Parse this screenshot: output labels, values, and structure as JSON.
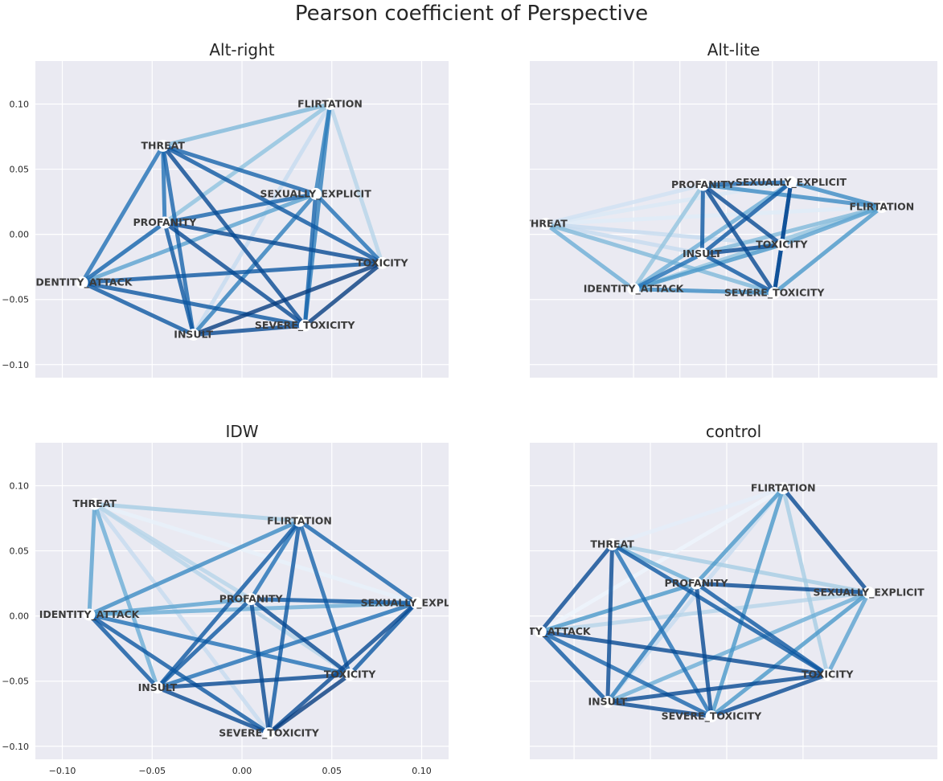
{
  "title": "Pearson coefficient of Perspective",
  "axes": {
    "x_ticks": [
      "−0.10",
      "−0.05",
      "0.00",
      "0.05",
      "0.10"
    ],
    "y_ticks": [
      "−0.10",
      "−0.05",
      "0.00",
      "0.05",
      "0.10"
    ]
  },
  "chart_data": [
    {
      "type": "network",
      "title": "Alt-right",
      "nodes": [
        {
          "id": "FLIRTATION",
          "x": 0.049,
          "y": 0.1
        },
        {
          "id": "THREAT",
          "x": -0.044,
          "y": 0.068
        },
        {
          "id": "SEXUALLY_EXPLICIT",
          "x": 0.041,
          "y": 0.031
        },
        {
          "id": "PROFANITY",
          "x": -0.043,
          "y": 0.009
        },
        {
          "id": "TOXICITY",
          "x": 0.078,
          "y": -0.022
        },
        {
          "id": "IDENTITY_ATTACK",
          "x": -0.089,
          "y": -0.037
        },
        {
          "id": "SEVERE_TOXICITY",
          "x": 0.035,
          "y": -0.07
        },
        {
          "id": "INSULT",
          "x": -0.027,
          "y": -0.077
        }
      ],
      "edges": [
        [
          "THREAT",
          "FLIRTATION",
          0.45
        ],
        [
          "PROFANITY",
          "FLIRTATION",
          0.4
        ],
        [
          "IDENTITY_ATTACK",
          "FLIRTATION",
          0.2
        ],
        [
          "SEXUALLY_EXPLICIT",
          "FLIRTATION",
          0.7
        ],
        [
          "TOXICITY",
          "FLIRTATION",
          0.3
        ],
        [
          "SEVERE_TOXICITY",
          "FLIRTATION",
          0.7
        ],
        [
          "INSULT",
          "FLIRTATION",
          0.25
        ],
        [
          "THREAT",
          "PROFANITY",
          0.75
        ],
        [
          "THREAT",
          "IDENTITY_ATTACK",
          0.75
        ],
        [
          "THREAT",
          "INSULT",
          0.8
        ],
        [
          "THREAT",
          "SEVERE_TOXICITY",
          0.9
        ],
        [
          "THREAT",
          "TOXICITY",
          0.85
        ],
        [
          "THREAT",
          "SEXUALLY_EXPLICIT",
          0.8
        ],
        [
          "PROFANITY",
          "SEXUALLY_EXPLICIT",
          0.8
        ],
        [
          "PROFANITY",
          "TOXICITY",
          0.9
        ],
        [
          "PROFANITY",
          "SEVERE_TOXICITY",
          0.9
        ],
        [
          "PROFANITY",
          "INSULT",
          0.85
        ],
        [
          "PROFANITY",
          "IDENTITY_ATTACK",
          0.8
        ],
        [
          "IDENTITY_ATTACK",
          "SEXUALLY_EXPLICIT",
          0.55
        ],
        [
          "IDENTITY_ATTACK",
          "TOXICITY",
          0.85
        ],
        [
          "IDENTITY_ATTACK",
          "SEVERE_TOXICITY",
          0.85
        ],
        [
          "IDENTITY_ATTACK",
          "INSULT",
          0.85
        ],
        [
          "INSULT",
          "SEXUALLY_EXPLICIT",
          0.7
        ],
        [
          "INSULT",
          "SEVERE_TOXICITY",
          0.9
        ],
        [
          "INSULT",
          "TOXICITY",
          0.95
        ],
        [
          "SEVERE_TOXICITY",
          "TOXICITY",
          0.95
        ],
        [
          "SEXUALLY_EXPLICIT",
          "TOXICITY",
          0.75
        ],
        [
          "SEXUALLY_EXPLICIT",
          "SEVERE_TOXICITY",
          0.8
        ]
      ]
    },
    {
      "type": "network",
      "title": "Alt-lite",
      "nodes": [
        {
          "id": "SEXUALLY_EXPLICIT",
          "x": 0.07,
          "y": 0.04
        },
        {
          "id": "PROFANITY",
          "x": -0.025,
          "y": 0.038
        },
        {
          "id": "FLIRTATION",
          "x": 0.168,
          "y": 0.021
        },
        {
          "id": "THREAT",
          "x": -0.195,
          "y": 0.008
        },
        {
          "id": "TOXICITY",
          "x": 0.06,
          "y": -0.008
        },
        {
          "id": "INSULT",
          "x": -0.026,
          "y": -0.015
        },
        {
          "id": "IDENTITY_ATTACK",
          "x": -0.1,
          "y": -0.042
        },
        {
          "id": "SEVERE_TOXICITY",
          "x": 0.052,
          "y": -0.045
        }
      ],
      "edges": [
        [
          "THREAT",
          "FLIRTATION",
          0.12
        ],
        [
          "THREAT",
          "PROFANITY",
          0.2
        ],
        [
          "THREAT",
          "INSULT",
          0.25
        ],
        [
          "THREAT",
          "TOXICITY",
          0.25
        ],
        [
          "THREAT",
          "SEVERE_TOXICITY",
          0.45
        ],
        [
          "THREAT",
          "IDENTITY_ATTACK",
          0.5
        ],
        [
          "THREAT",
          "SEXUALLY_EXPLICIT",
          0.15
        ],
        [
          "PROFANITY",
          "SEXUALLY_EXPLICIT",
          0.8
        ],
        [
          "PROFANITY",
          "FLIRTATION",
          0.65
        ],
        [
          "PROFANITY",
          "IDENTITY_ATTACK",
          0.4
        ],
        [
          "PROFANITY",
          "INSULT",
          0.85
        ],
        [
          "PROFANITY",
          "TOXICITY",
          0.9
        ],
        [
          "PROFANITY",
          "SEVERE_TOXICITY",
          0.9
        ],
        [
          "SEXUALLY_EXPLICIT",
          "FLIRTATION",
          0.65
        ],
        [
          "SEXUALLY_EXPLICIT",
          "INSULT",
          0.85
        ],
        [
          "SEXUALLY_EXPLICIT",
          "TOXICITY",
          0.9
        ],
        [
          "SEXUALLY_EXPLICIT",
          "SEVERE_TOXICITY",
          0.85
        ],
        [
          "SEXUALLY_EXPLICIT",
          "IDENTITY_ATTACK",
          0.5
        ],
        [
          "FLIRTATION",
          "IDENTITY_ATTACK",
          0.4
        ],
        [
          "FLIRTATION",
          "INSULT",
          0.45
        ],
        [
          "FLIRTATION",
          "SEVERE_TOXICITY",
          0.6
        ],
        [
          "FLIRTATION",
          "TOXICITY",
          0.55
        ],
        [
          "INSULT",
          "TOXICITY",
          0.9
        ],
        [
          "INSULT",
          "SEVERE_TOXICITY",
          0.85
        ],
        [
          "INSULT",
          "IDENTITY_ATTACK",
          0.75
        ],
        [
          "IDENTITY_ATTACK",
          "SEVERE_TOXICITY",
          0.65
        ],
        [
          "IDENTITY_ATTACK",
          "TOXICITY",
          0.6
        ],
        [
          "TOXICITY",
          "SEVERE_TOXICITY",
          0.9
        ]
      ]
    },
    {
      "type": "network",
      "title": "IDW",
      "nodes": [
        {
          "id": "THREAT",
          "x": -0.082,
          "y": 0.086
        },
        {
          "id": "FLIRTATION",
          "x": 0.032,
          "y": 0.073
        },
        {
          "id": "PROFANITY",
          "x": 0.005,
          "y": 0.013
        },
        {
          "id": "SEXUALLY_EXPLICIT",
          "x": 0.097,
          "y": 0.01
        },
        {
          "id": "IDENTITY_ATTACK",
          "x": -0.085,
          "y": 0.001
        },
        {
          "id": "TOXICITY",
          "x": 0.06,
          "y": -0.045
        },
        {
          "id": "INSULT",
          "x": -0.047,
          "y": -0.055
        },
        {
          "id": "SEVERE_TOXICITY",
          "x": 0.015,
          "y": -0.09
        }
      ],
      "edges": [
        [
          "THREAT",
          "FLIRTATION",
          0.35
        ],
        [
          "THREAT",
          "SEXUALLY_EXPLICIT",
          0.08
        ],
        [
          "THREAT",
          "PROFANITY",
          0.3
        ],
        [
          "THREAT",
          "TOXICITY",
          0.3
        ],
        [
          "THREAT",
          "SEVERE_TOXICITY",
          0.25
        ],
        [
          "THREAT",
          "INSULT",
          0.5
        ],
        [
          "THREAT",
          "IDENTITY_ATTACK",
          0.55
        ],
        [
          "FLIRTATION",
          "IDENTITY_ATTACK",
          0.65
        ],
        [
          "FLIRTATION",
          "PROFANITY",
          0.75
        ],
        [
          "FLIRTATION",
          "SEXUALLY_EXPLICIT",
          0.8
        ],
        [
          "FLIRTATION",
          "TOXICITY",
          0.8
        ],
        [
          "FLIRTATION",
          "INSULT",
          0.85
        ],
        [
          "FLIRTATION",
          "SEVERE_TOXICITY",
          0.85
        ],
        [
          "PROFANITY",
          "SEXUALLY_EXPLICIT",
          0.85
        ],
        [
          "PROFANITY",
          "IDENTITY_ATTACK",
          0.55
        ],
        [
          "PROFANITY",
          "TOXICITY",
          0.9
        ],
        [
          "PROFANITY",
          "INSULT",
          0.85
        ],
        [
          "PROFANITY",
          "SEVERE_TOXICITY",
          0.9
        ],
        [
          "SEXUALLY_EXPLICIT",
          "IDENTITY_ATTACK",
          0.5
        ],
        [
          "SEXUALLY_EXPLICIT",
          "INSULT",
          0.75
        ],
        [
          "SEXUALLY_EXPLICIT",
          "TOXICITY",
          0.85
        ],
        [
          "SEXUALLY_EXPLICIT",
          "SEVERE_TOXICITY",
          0.9
        ],
        [
          "IDENTITY_ATTACK",
          "TOXICITY",
          0.75
        ],
        [
          "IDENTITY_ATTACK",
          "INSULT",
          0.85
        ],
        [
          "IDENTITY_ATTACK",
          "SEVERE_TOXICITY",
          0.85
        ],
        [
          "INSULT",
          "TOXICITY",
          0.9
        ],
        [
          "INSULT",
          "SEVERE_TOXICITY",
          0.9
        ],
        [
          "TOXICITY",
          "SEVERE_TOXICITY",
          0.95
        ]
      ]
    },
    {
      "type": "network",
      "title": "control",
      "nodes": [
        {
          "id": "FLIRTATION",
          "x": 0.087,
          "y": 0.098
        },
        {
          "id": "THREAT",
          "x": -0.025,
          "y": 0.055
        },
        {
          "id": "PROFANITY",
          "x": 0.03,
          "y": 0.025
        },
        {
          "id": "SEXUALLY_EXPLICIT",
          "x": 0.143,
          "y": 0.018
        },
        {
          "id": "IDENTITY_ATTACK",
          "x": -0.072,
          "y": -0.012
        },
        {
          "id": "TOXICITY",
          "x": 0.116,
          "y": -0.045
        },
        {
          "id": "INSULT",
          "x": -0.028,
          "y": -0.066
        },
        {
          "id": "SEVERE_TOXICITY",
          "x": 0.04,
          "y": -0.077
        }
      ],
      "edges": [
        [
          "THREAT",
          "FLIRTATION",
          0.1
        ],
        [
          "IDENTITY_ATTACK",
          "FLIRTATION",
          0.05
        ],
        [
          "INSULT",
          "FLIRTATION",
          0.25
        ],
        [
          "PROFANITY",
          "FLIRTATION",
          0.6
        ],
        [
          "SEXUALLY_EXPLICIT",
          "FLIRTATION",
          0.9
        ],
        [
          "TOXICITY",
          "FLIRTATION",
          0.35
        ],
        [
          "SEVERE_TOXICITY",
          "FLIRTATION",
          0.6
        ],
        [
          "THREAT",
          "SEXUALLY_EXPLICIT",
          0.35
        ],
        [
          "THREAT",
          "PROFANITY",
          0.5
        ],
        [
          "THREAT",
          "TOXICITY",
          0.85
        ],
        [
          "THREAT",
          "SEVERE_TOXICITY",
          0.75
        ],
        [
          "THREAT",
          "INSULT",
          0.9
        ],
        [
          "THREAT",
          "IDENTITY_ATTACK",
          0.9
        ],
        [
          "PROFANITY",
          "SEXUALLY_EXPLICIT",
          0.9
        ],
        [
          "PROFANITY",
          "IDENTITY_ATTACK",
          0.6
        ],
        [
          "PROFANITY",
          "INSULT",
          0.7
        ],
        [
          "PROFANITY",
          "TOXICITY",
          0.85
        ],
        [
          "PROFANITY",
          "SEVERE_TOXICITY",
          0.9
        ],
        [
          "SEXUALLY_EXPLICIT",
          "IDENTITY_ATTACK",
          0.3
        ],
        [
          "SEXUALLY_EXPLICIT",
          "INSULT",
          0.5
        ],
        [
          "SEXUALLY_EXPLICIT",
          "TOXICITY",
          0.55
        ],
        [
          "SEXUALLY_EXPLICIT",
          "SEVERE_TOXICITY",
          0.6
        ],
        [
          "IDENTITY_ATTACK",
          "INSULT",
          0.85
        ],
        [
          "IDENTITY_ATTACK",
          "TOXICITY",
          0.9
        ],
        [
          "IDENTITY_ATTACK",
          "SEVERE_TOXICITY",
          0.8
        ],
        [
          "INSULT",
          "TOXICITY",
          0.9
        ],
        [
          "INSULT",
          "SEVERE_TOXICITY",
          0.9
        ],
        [
          "SEVERE_TOXICITY",
          "TOXICITY",
          0.9
        ]
      ]
    }
  ]
}
